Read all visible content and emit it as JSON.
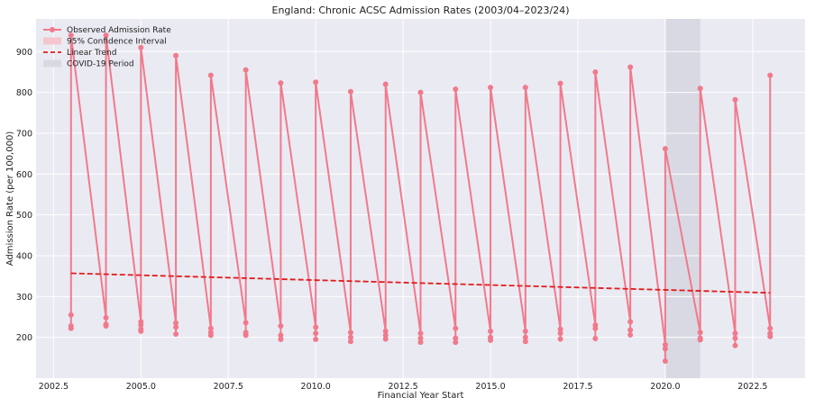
{
  "chart_data": {
    "type": "line",
    "title": "England: Chronic ACSC Admission Rates (2003/04–2023/24)",
    "xlabel": "Financial Year Start",
    "ylabel": "Admission Rate (per 100,000)",
    "xlim": [
      2002.0,
      2024.0
    ],
    "ylim": [
      100,
      980
    ],
    "x_ticks": [
      2002.5,
      2005.0,
      2007.5,
      2010.0,
      2012.5,
      2015.0,
      2017.5,
      2020.0,
      2022.5
    ],
    "x_tick_labels": [
      "2002.5",
      "2005.0",
      "2007.5",
      "2010.0",
      "2012.5",
      "2015.0",
      "2017.5",
      "2020.0",
      "2022.5"
    ],
    "y_ticks": [
      200,
      300,
      400,
      500,
      600,
      700,
      800,
      900
    ],
    "y_tick_labels": [
      "200",
      "300",
      "400",
      "500",
      "600",
      "700",
      "800",
      "900"
    ],
    "grid": true,
    "legend_position": "top-left",
    "legend": [
      {
        "label": "Observed Admission Rate",
        "kind": "line-marker",
        "color": "#f07a8c"
      },
      {
        "label": "95% Confidence Interval",
        "kind": "patch",
        "color": "#f5c6cf"
      },
      {
        "label": "Linear Trend",
        "kind": "dashed-line",
        "color": "#e31a1c"
      },
      {
        "label": "COVID-19 Period",
        "kind": "patch",
        "color": "#d9d9e3"
      }
    ],
    "covid_period": [
      2020.0,
      2021.0
    ],
    "trend": {
      "x": [
        2003,
        2023
      ],
      "y": [
        357,
        309
      ]
    },
    "observed": {
      "color": "#f07a8c",
      "points": [
        [
          2003,
          255
        ],
        [
          2003,
          228
        ],
        [
          2003,
          222
        ],
        [
          2003,
          940
        ],
        [
          2004,
          248
        ],
        [
          2004,
          232
        ],
        [
          2004,
          228
        ],
        [
          2004,
          940
        ],
        [
          2005,
          238
        ],
        [
          2005,
          230
        ],
        [
          2005,
          220
        ],
        [
          2005,
          215
        ],
        [
          2005,
          910
        ],
        [
          2006,
          235
        ],
        [
          2006,
          225
        ],
        [
          2006,
          208
        ],
        [
          2006,
          890
        ],
        [
          2007,
          222
        ],
        [
          2007,
          212
        ],
        [
          2007,
          205
        ],
        [
          2007,
          842
        ],
        [
          2008,
          236
        ],
        [
          2008,
          212
        ],
        [
          2008,
          205
        ],
        [
          2008,
          855
        ],
        [
          2009,
          228
        ],
        [
          2009,
          205
        ],
        [
          2009,
          195
        ],
        [
          2009,
          823
        ],
        [
          2010,
          225
        ],
        [
          2010,
          210
        ],
        [
          2010,
          195
        ],
        [
          2010,
          825
        ],
        [
          2011,
          212
        ],
        [
          2011,
          200
        ],
        [
          2011,
          190
        ],
        [
          2011,
          802
        ],
        [
          2012,
          215
        ],
        [
          2012,
          205
        ],
        [
          2012,
          196
        ],
        [
          2012,
          820
        ],
        [
          2013,
          210
        ],
        [
          2013,
          198
        ],
        [
          2013,
          188
        ],
        [
          2013,
          800
        ],
        [
          2014,
          222
        ],
        [
          2014,
          198
        ],
        [
          2014,
          188
        ],
        [
          2014,
          808
        ],
        [
          2015,
          215
        ],
        [
          2015,
          200
        ],
        [
          2015,
          193
        ],
        [
          2015,
          812
        ],
        [
          2016,
          215
        ],
        [
          2016,
          200
        ],
        [
          2016,
          190
        ],
        [
          2016,
          812
        ],
        [
          2017,
          220
        ],
        [
          2017,
          210
        ],
        [
          2017,
          196
        ],
        [
          2017,
          822
        ],
        [
          2018,
          230
        ],
        [
          2018,
          222
        ],
        [
          2018,
          197
        ],
        [
          2018,
          850
        ],
        [
          2019,
          238
        ],
        [
          2019,
          218
        ],
        [
          2019,
          206
        ],
        [
          2019,
          862
        ],
        [
          2020,
          182
        ],
        [
          2020,
          172
        ],
        [
          2020,
          142
        ],
        [
          2020,
          662
        ],
        [
          2021,
          212
        ],
        [
          2021,
          198
        ],
        [
          2021,
          194
        ],
        [
          2021,
          810
        ],
        [
          2022,
          210
        ],
        [
          2022,
          198
        ],
        [
          2022,
          180
        ],
        [
          2022,
          782
        ],
        [
          2023,
          222
        ],
        [
          2023,
          210
        ],
        [
          2023,
          202
        ],
        [
          2023,
          842
        ]
      ]
    }
  }
}
